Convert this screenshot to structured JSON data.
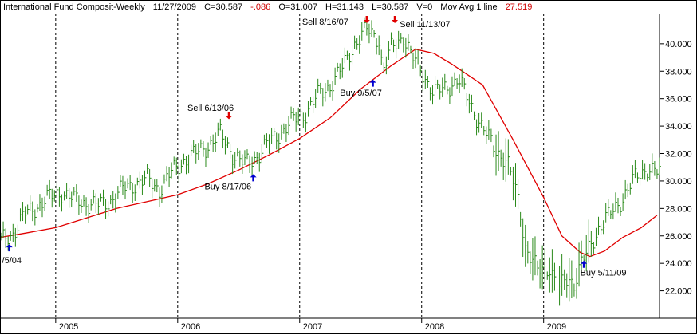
{
  "header": {
    "symbol": "International Fund Composit-Weekly",
    "date": "11/27/2009",
    "close": "C=30.587",
    "change": "-.086",
    "open": "O=31.007",
    "high": "H=31.143",
    "low": "L=30.587",
    "volume": "V=0",
    "indicator": "Mov Avg 1 line",
    "indicator_value": "27.519"
  },
  "colors": {
    "price_bars": "#2a8a1a",
    "moving_average": "#e00000",
    "sell_arrow": "#e00000",
    "buy_arrow": "#0000d0",
    "grid": "#000000"
  },
  "chart_data": {
    "type": "ohlc-bar",
    "yaxis_ticks": [
      "22.000",
      "24.000",
      "26.000",
      "28.000",
      "30.000",
      "32.000",
      "34.000",
      "36.000",
      "38.000",
      "40.000"
    ],
    "ylim": [
      20.0,
      42.2
    ],
    "xaxis_ticks": [
      "2005",
      "2006",
      "2007",
      "2008",
      "2009"
    ],
    "xlim": [
      2004.55,
      2009.95
    ],
    "grid": "vertical dotted lines at year boundaries",
    "price_series": [
      [
        2004.55,
        25.6
      ],
      [
        2004.65,
        26.2
      ],
      [
        2004.75,
        27.6
      ],
      [
        2004.85,
        28.2
      ],
      [
        2004.95,
        28.8
      ],
      [
        2005.05,
        29.2
      ],
      [
        2005.15,
        28.6
      ],
      [
        2005.25,
        28.4
      ],
      [
        2005.35,
        28.2
      ],
      [
        2005.45,
        28.6
      ],
      [
        2005.55,
        29.4
      ],
      [
        2005.65,
        29.8
      ],
      [
        2005.75,
        30.1
      ],
      [
        2005.85,
        29.4
      ],
      [
        2005.95,
        30.6
      ],
      [
        2006.05,
        31.5
      ],
      [
        2006.15,
        32.0
      ],
      [
        2006.25,
        32.6
      ],
      [
        2006.35,
        33.4
      ],
      [
        2006.45,
        32.0
      ],
      [
        2006.55,
        31.2
      ],
      [
        2006.65,
        31.8
      ],
      [
        2006.75,
        32.8
      ],
      [
        2006.85,
        33.6
      ],
      [
        2006.95,
        34.4
      ],
      [
        2007.05,
        35.0
      ],
      [
        2007.15,
        36.2
      ],
      [
        2007.25,
        37.0
      ],
      [
        2007.35,
        38.2
      ],
      [
        2007.45,
        40.0
      ],
      [
        2007.55,
        41.0
      ],
      [
        2007.65,
        40.4
      ],
      [
        2007.68,
        38.0
      ],
      [
        2007.75,
        39.6
      ],
      [
        2007.85,
        40.6
      ],
      [
        2007.92,
        39.0
      ],
      [
        2008.0,
        38.0
      ],
      [
        2008.1,
        36.4
      ],
      [
        2008.2,
        36.8
      ],
      [
        2008.3,
        37.4
      ],
      [
        2008.4,
        35.6
      ],
      [
        2008.5,
        33.8
      ],
      [
        2008.6,
        32.4
      ],
      [
        2008.7,
        31.4
      ],
      [
        2008.8,
        28.4
      ],
      [
        2008.85,
        25.2
      ],
      [
        2008.95,
        23.4
      ],
      [
        2009.05,
        23.8
      ],
      [
        2009.12,
        22.0
      ],
      [
        2009.2,
        23.0
      ],
      [
        2009.25,
        22.6
      ],
      [
        2009.3,
        23.8
      ],
      [
        2009.35,
        24.6
      ],
      [
        2009.45,
        26.6
      ],
      [
        2009.55,
        27.6
      ],
      [
        2009.65,
        28.8
      ],
      [
        2009.75,
        30.2
      ],
      [
        2009.85,
        31.0
      ],
      [
        2009.93,
        30.6
      ]
    ],
    "moving_average": [
      [
        2004.55,
        25.9
      ],
      [
        2004.75,
        26.2
      ],
      [
        2005.0,
        26.6
      ],
      [
        2005.25,
        27.3
      ],
      [
        2005.5,
        28.0
      ],
      [
        2005.75,
        28.5
      ],
      [
        2006.0,
        29.0
      ],
      [
        2006.25,
        29.8
      ],
      [
        2006.5,
        30.8
      ],
      [
        2006.75,
        31.9
      ],
      [
        2007.0,
        33.1
      ],
      [
        2007.25,
        34.6
      ],
      [
        2007.5,
        36.7
      ],
      [
        2007.75,
        38.4
      ],
      [
        2007.95,
        39.6
      ],
      [
        2008.1,
        39.3
      ],
      [
        2008.25,
        38.5
      ],
      [
        2008.5,
        37.0
      ],
      [
        2008.75,
        33.0
      ],
      [
        2009.0,
        28.8
      ],
      [
        2009.15,
        26.0
      ],
      [
        2009.3,
        24.8
      ],
      [
        2009.38,
        24.5
      ],
      [
        2009.5,
        24.9
      ],
      [
        2009.65,
        25.9
      ],
      [
        2009.8,
        26.6
      ],
      [
        2009.93,
        27.5
      ]
    ],
    "annotations": [
      {
        "label": "/5/04",
        "x": 2004.56,
        "y": 24.0
      },
      {
        "label": "Sell 6/13/06",
        "x": 2006.08,
        "y": 35.1
      },
      {
        "label": "Buy 8/17/06",
        "x": 2006.22,
        "y": 29.4
      },
      {
        "label": "Sell 8/16/07",
        "x": 2007.02,
        "y": 41.4
      },
      {
        "label": "Buy 9/5/07",
        "x": 2007.33,
        "y": 36.2
      },
      {
        "label": "Sell 11/13/07",
        "x": 2007.82,
        "y": 41.2
      },
      {
        "label": "Buy 5/11/09",
        "x": 2009.3,
        "y": 23.1
      }
    ],
    "arrows": [
      {
        "kind": "buy",
        "x": 2004.62,
        "y": 25.4
      },
      {
        "kind": "sell",
        "x": 2006.42,
        "y": 34.5
      },
      {
        "kind": "buy",
        "x": 2006.62,
        "y": 30.5
      },
      {
        "kind": "sell",
        "x": 2007.55,
        "y": 41.5
      },
      {
        "kind": "buy",
        "x": 2007.6,
        "y": 37.4
      },
      {
        "kind": "sell",
        "x": 2007.78,
        "y": 41.5
      },
      {
        "kind": "buy",
        "x": 2009.33,
        "y": 24.2
      }
    ]
  }
}
